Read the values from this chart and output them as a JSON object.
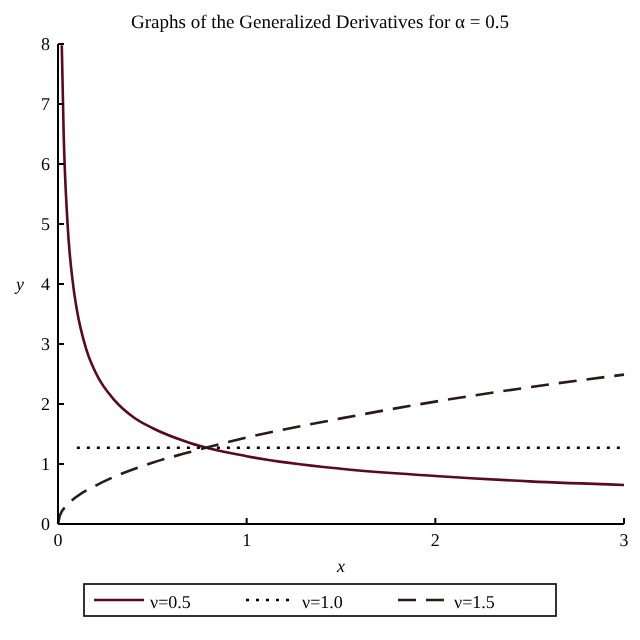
{
  "chart_data": {
    "type": "line",
    "title": "Graphs of the Generalized Derivatives for α = 0.5",
    "xlabel": "x",
    "ylabel": "y",
    "xlim": [
      0,
      3
    ],
    "ylim": [
      0,
      8
    ],
    "xticks": [
      0,
      1,
      2,
      3
    ],
    "yticks": [
      0,
      1,
      2,
      3,
      4,
      5,
      6,
      7,
      8
    ],
    "legend": "bottom",
    "grid": false,
    "series": [
      {
        "name": "ν=0.5",
        "color": "#5a0a1a",
        "line_style": "solid",
        "x": [
          0.02,
          0.03,
          0.05,
          0.08,
          0.1,
          0.15,
          0.2,
          0.3,
          0.4,
          0.5,
          0.7,
          1,
          1.5,
          2,
          2.5,
          3
        ],
        "values": [
          7.98,
          6.51,
          5.04,
          3.99,
          3.57,
          2.91,
          2.52,
          2.06,
          1.78,
          1.6,
          1.35,
          1.13,
          0.92,
          0.8,
          0.71,
          0.65
        ]
      },
      {
        "name": "ν=1.0",
        "color": "#000000",
        "line_style": "dotted",
        "x": [
          0.1,
          3
        ],
        "values": [
          1.27,
          1.27
        ]
      },
      {
        "name": "ν=1.5",
        "color": "#2a1a1a",
        "line_style": "dashed",
        "x": [
          0,
          0.01,
          0.05,
          0.1,
          0.2,
          0.3,
          0.5,
          0.7,
          1,
          1.5,
          2,
          2.5,
          3
        ],
        "values": [
          0,
          0.14,
          0.32,
          0.46,
          0.64,
          0.79,
          1.02,
          1.2,
          1.44,
          1.76,
          2.04,
          2.28,
          2.49
        ]
      }
    ]
  }
}
